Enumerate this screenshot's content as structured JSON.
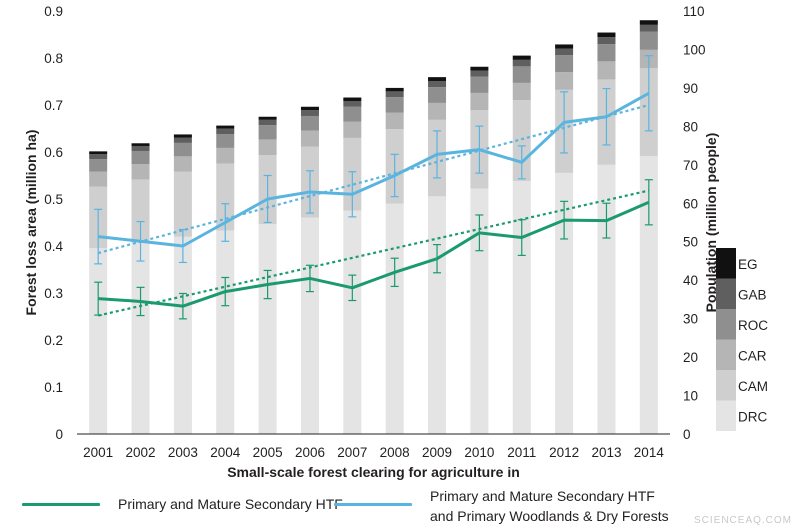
{
  "chart_data": {
    "type": "bar+line",
    "years": [
      "2001",
      "2002",
      "2003",
      "2004",
      "2005",
      "2006",
      "2007",
      "2008",
      "2009",
      "2010",
      "2011",
      "2012",
      "2013",
      "2014"
    ],
    "xlabel": "Small-scale forest clearing for agriculture in",
    "ylabel_left": "Forest loss area (million ha)",
    "ylabel_right": "Population (million people)",
    "ylim_left": [
      0,
      0.9
    ],
    "yticks_left": [
      "0",
      "0.1",
      "0.2",
      "0.3",
      "0.4",
      "0.5",
      "0.6",
      "0.7",
      "0.8",
      "0.9"
    ],
    "ylim_right": [
      0,
      110
    ],
    "yticks_right": [
      "0",
      "10",
      "20",
      "30",
      "40",
      "50",
      "60",
      "70",
      "80",
      "90",
      "100",
      "110"
    ],
    "population_stacks": {
      "note_units": "million people, right axis",
      "countries": [
        {
          "name": "DRC",
          "color": "#e4e4e4",
          "values": [
            48.3,
            49.8,
            51.3,
            52.9,
            54.6,
            56.3,
            58.1,
            59.9,
            61.8,
            63.8,
            65.8,
            67.9,
            70.0,
            72.3
          ]
        },
        {
          "name": "CAM",
          "color": "#cfcfcf",
          "values": [
            16.0,
            16.4,
            16.9,
            17.4,
            17.9,
            18.4,
            18.9,
            19.4,
            19.9,
            20.4,
            21.0,
            21.6,
            22.2,
            22.8
          ]
        },
        {
          "name": "CAR",
          "color": "#b5b5b5",
          "values": [
            3.9,
            4.0,
            4.0,
            4.1,
            4.1,
            4.2,
            4.2,
            4.3,
            4.4,
            4.5,
            4.5,
            4.6,
            4.7,
            4.8
          ]
        },
        {
          "name": "ROC",
          "color": "#8f8f8f",
          "values": [
            3.3,
            3.4,
            3.5,
            3.6,
            3.7,
            3.8,
            3.9,
            4.0,
            4.1,
            4.2,
            4.3,
            4.4,
            4.5,
            4.7
          ]
        },
        {
          "name": "GAB",
          "color": "#5f5f5f",
          "values": [
            1.3,
            1.3,
            1.4,
            1.4,
            1.4,
            1.5,
            1.5,
            1.5,
            1.6,
            1.6,
            1.7,
            1.7,
            1.8,
            1.8
          ]
        },
        {
          "name": "EG",
          "color": "#111111",
          "values": [
            0.7,
            0.7,
            0.8,
            0.8,
            0.8,
            0.9,
            0.9,
            0.9,
            1.0,
            1.0,
            1.1,
            1.1,
            1.2,
            1.2
          ]
        }
      ]
    },
    "series": [
      {
        "name": "Primary and Mature Secondary HTF",
        "color": "#1a9a6e",
        "values": [
          0.288,
          0.282,
          0.272,
          0.303,
          0.318,
          0.331,
          0.311,
          0.344,
          0.373,
          0.428,
          0.418,
          0.455,
          0.454,
          0.493
        ],
        "err": [
          0.035,
          0.03,
          0.027,
          0.03,
          0.03,
          0.028,
          0.027,
          0.03,
          0.03,
          0.038,
          0.038,
          0.04,
          0.037,
          0.048
        ],
        "trend": [
          0.252,
          0.518
        ]
      },
      {
        "name": "Primary and Mature Secondary HTF\nand Primary Woodlands & Dry Forests",
        "color": "#5ab4e0",
        "values": [
          0.42,
          0.41,
          0.4,
          0.45,
          0.5,
          0.515,
          0.51,
          0.55,
          0.595,
          0.605,
          0.578,
          0.663,
          0.675,
          0.725
        ],
        "err": [
          0.058,
          0.042,
          0.035,
          0.04,
          0.05,
          0.045,
          0.048,
          0.045,
          0.05,
          0.05,
          0.035,
          0.065,
          0.06,
          0.08
        ],
        "trend": [
          0.385,
          0.7
        ]
      }
    ],
    "legend_position": "right, stacked EG/GAB/ROC/CAR/CAM/DRC"
  },
  "legend_bottom": [
    {
      "label": "Primary and Mature Secondary HTF",
      "color": "#1a9a6e"
    },
    {
      "label_line1": "Primary and Mature Secondary HTF",
      "label_line2": "and Primary Woodlands & Dry Forests",
      "color": "#5ab4e0"
    }
  ],
  "watermark": "SCIENCEAQ.COM"
}
